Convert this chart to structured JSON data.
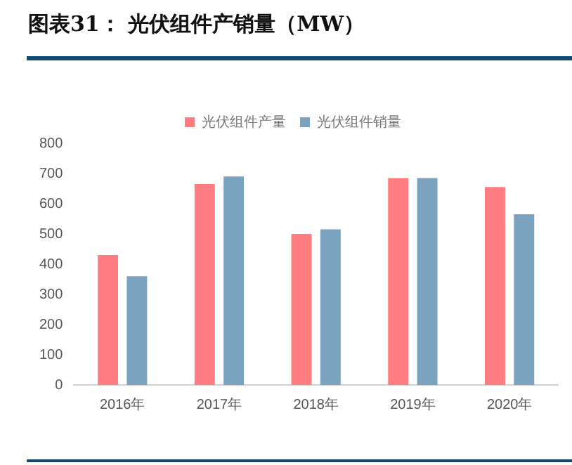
{
  "chart_data": {
    "type": "bar",
    "title": "图表31：  光伏组件产销量（MW）",
    "categories": [
      "2016年",
      "2017年",
      "2018年",
      "2019年",
      "2020年"
    ],
    "series": [
      {
        "name": "光伏组件产量",
        "color": "#ff7c80",
        "values": [
          430,
          665,
          500,
          685,
          655
        ]
      },
      {
        "name": "光伏组件销量",
        "color": "#7ba3bf",
        "values": [
          360,
          690,
          515,
          685,
          565
        ]
      }
    ],
    "ylim": [
      0,
      800
    ],
    "yticks": [
      0,
      100,
      200,
      300,
      400,
      500,
      600,
      700,
      800
    ],
    "grid": false,
    "legend": "top"
  }
}
